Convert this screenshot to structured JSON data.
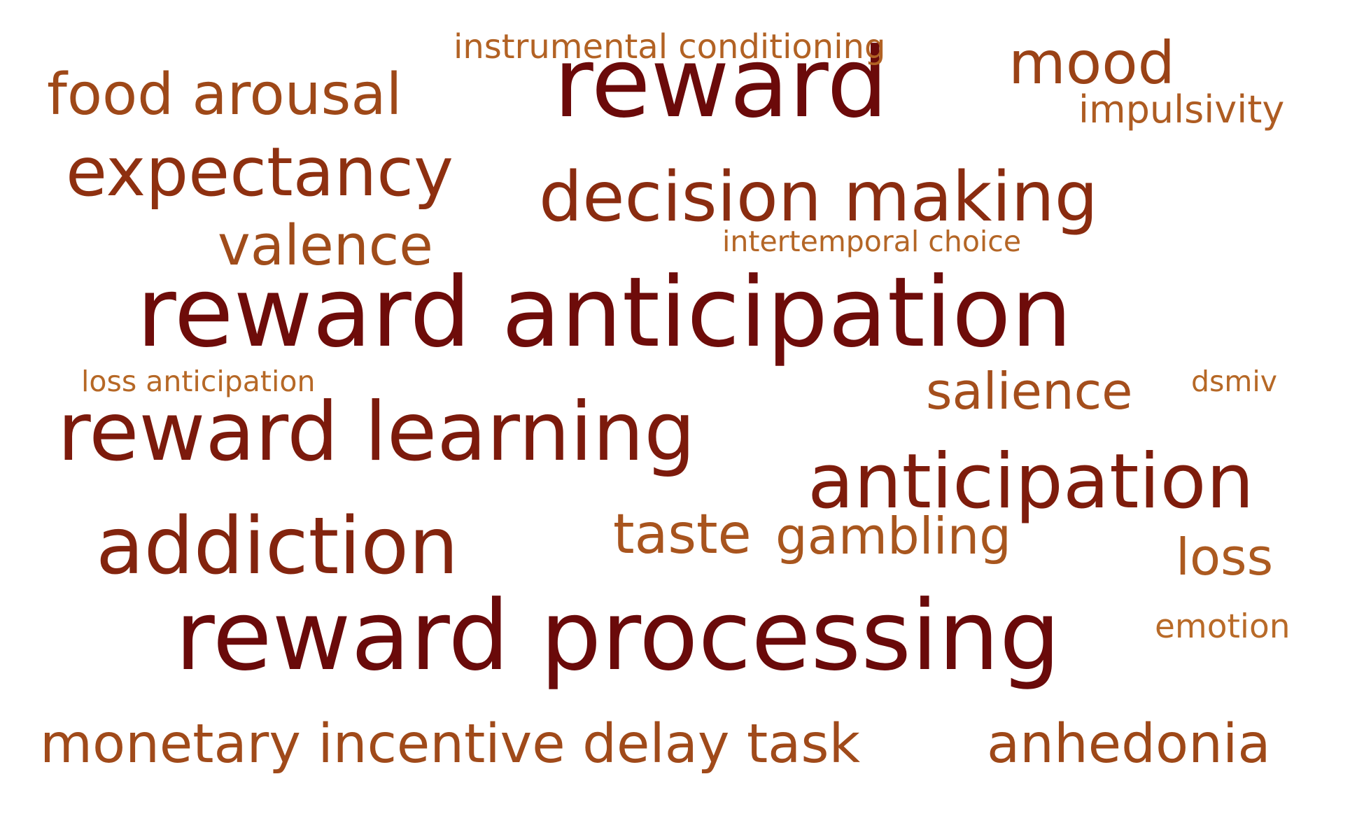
{
  "words": [
    {
      "text": "reward",
      "color": "#6b0a0a"
    },
    {
      "text": "reward anticipation",
      "color": "#6e0c0a"
    },
    {
      "text": "reward processing",
      "color": "#6a0a0a"
    },
    {
      "text": "reward learning",
      "color": "#7c1a0c"
    },
    {
      "text": "anticipation",
      "color": "#7e1c0c"
    },
    {
      "text": "addiction",
      "color": "#83240e"
    },
    {
      "text": "decision making",
      "color": "#8a2c10"
    },
    {
      "text": "expectancy",
      "color": "#8e3010"
    },
    {
      "text": "mood",
      "color": "#9a4216"
    },
    {
      "text": "food arousal",
      "color": "#9e4818"
    },
    {
      "text": "monetary incentive delay task",
      "color": "#a04a1a"
    },
    {
      "text": "anhedonia",
      "color": "#9e4818"
    },
    {
      "text": "valence",
      "color": "#a04c1a"
    },
    {
      "text": "salience",
      "color": "#a44e1c"
    },
    {
      "text": "taste",
      "color": "#a8541e"
    },
    {
      "text": "gambling",
      "color": "#a8561e"
    },
    {
      "text": "loss",
      "color": "#ac5a20"
    },
    {
      "text": "impulsivity",
      "color": "#ae5c22"
    },
    {
      "text": "instrumental conditioning",
      "color": "#b26224"
    },
    {
      "text": "intertemporal choice",
      "color": "#b46626"
    },
    {
      "text": "loss anticipation",
      "color": "#b66826"
    },
    {
      "text": "dsmiv",
      "color": "#b66826"
    },
    {
      "text": "emotion",
      "color": "#b86a28"
    }
  ]
}
